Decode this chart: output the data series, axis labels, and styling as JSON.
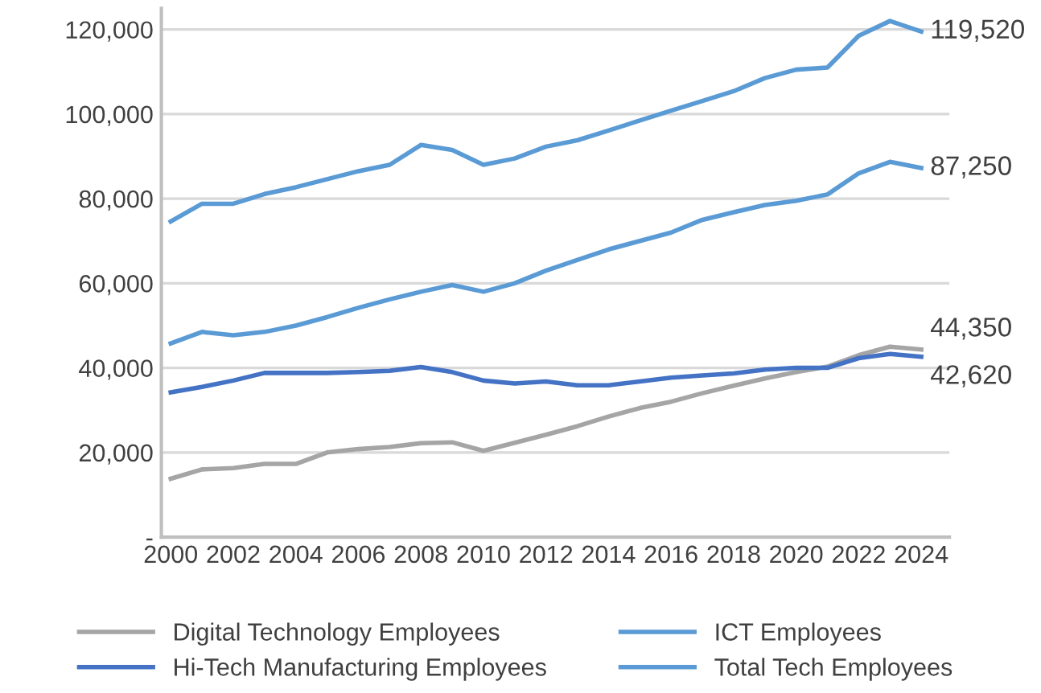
{
  "chart_data": {
    "type": "line",
    "x": [
      2000,
      2001,
      2002,
      2003,
      2004,
      2005,
      2006,
      2007,
      2008,
      2009,
      2010,
      2011,
      2012,
      2013,
      2014,
      2015,
      2016,
      2017,
      2018,
      2019,
      2020,
      2021,
      2022,
      2023,
      2024
    ],
    "series": [
      {
        "name": "Digital Technology Employees",
        "color": "#a5a5a5",
        "values": [
          13800,
          16000,
          16300,
          17300,
          17300,
          20000,
          20800,
          21300,
          22200,
          22400,
          20400,
          22300,
          24200,
          26200,
          28500,
          30500,
          32000,
          34000,
          35800,
          37500,
          39000,
          40300,
          43000,
          45000,
          44350
        ],
        "value_labels": [
          null,
          null,
          null,
          null,
          null,
          null,
          null,
          null,
          null,
          null,
          null,
          null,
          null,
          null,
          null,
          null,
          null,
          null,
          null,
          null,
          null,
          null,
          null,
          null,
          "44,350"
        ]
      },
      {
        "name": "ICT Employees",
        "color": "#5b9bd5",
        "values": [
          45800,
          48500,
          47700,
          48500,
          50000,
          52000,
          54200,
          56200,
          58000,
          59600,
          58000,
          60000,
          63000,
          65500,
          68000,
          70000,
          72000,
          75000,
          76800,
          78500,
          79500,
          81000,
          86000,
          88700,
          87250
        ],
        "value_labels": [
          null,
          null,
          null,
          null,
          null,
          null,
          null,
          null,
          null,
          null,
          null,
          null,
          null,
          null,
          null,
          null,
          null,
          null,
          null,
          null,
          null,
          null,
          null,
          null,
          "87,250"
        ]
      },
      {
        "name": "Hi-Tech Manufacturing Employees",
        "color": "#4472c4",
        "values": [
          34200,
          35500,
          37000,
          38800,
          38800,
          38800,
          39000,
          39300,
          40200,
          39000,
          37000,
          36300,
          36800,
          35900,
          35900,
          36800,
          37700,
          38200,
          38700,
          39600,
          40000,
          40000,
          42300,
          43300,
          42620
        ],
        "value_labels": [
          null,
          null,
          null,
          null,
          null,
          null,
          null,
          null,
          null,
          null,
          null,
          null,
          null,
          null,
          null,
          null,
          null,
          null,
          null,
          null,
          null,
          null,
          null,
          null,
          "42,620"
        ]
      },
      {
        "name": "Total Tech Employees",
        "color": "#5b9bd5",
        "values": [
          74600,
          78800,
          78800,
          81100,
          82700,
          84600,
          86500,
          88000,
          92700,
          91500,
          88000,
          89500,
          92300,
          93800,
          96100,
          98500,
          100800,
          103100,
          105400,
          108500,
          110500,
          111000,
          118500,
          122000,
          119520
        ],
        "value_labels": [
          null,
          null,
          null,
          null,
          null,
          null,
          null,
          null,
          null,
          null,
          null,
          null,
          null,
          null,
          null,
          null,
          null,
          null,
          null,
          null,
          null,
          null,
          null,
          null,
          "119,520"
        ]
      }
    ],
    "xlim": [
      1999.7,
      2024.9
    ],
    "xticks": [
      2000,
      2002,
      2004,
      2006,
      2008,
      2010,
      2012,
      2014,
      2016,
      2018,
      2020,
      2022,
      2024
    ],
    "ylim": [
      0,
      125000
    ],
    "yticks": [
      {
        "value": 0,
        "label": "-"
      },
      {
        "value": 20000,
        "label": "20,000"
      },
      {
        "value": 40000,
        "label": "40,000"
      },
      {
        "value": 60000,
        "label": "60,000"
      },
      {
        "value": 80000,
        "label": "80,000"
      },
      {
        "value": 100000,
        "label": "100,000"
      },
      {
        "value": 120000,
        "label": "120,000"
      }
    ],
    "grid": "y",
    "legend": "bottom",
    "marker": "none",
    "line_style": "solid"
  }
}
